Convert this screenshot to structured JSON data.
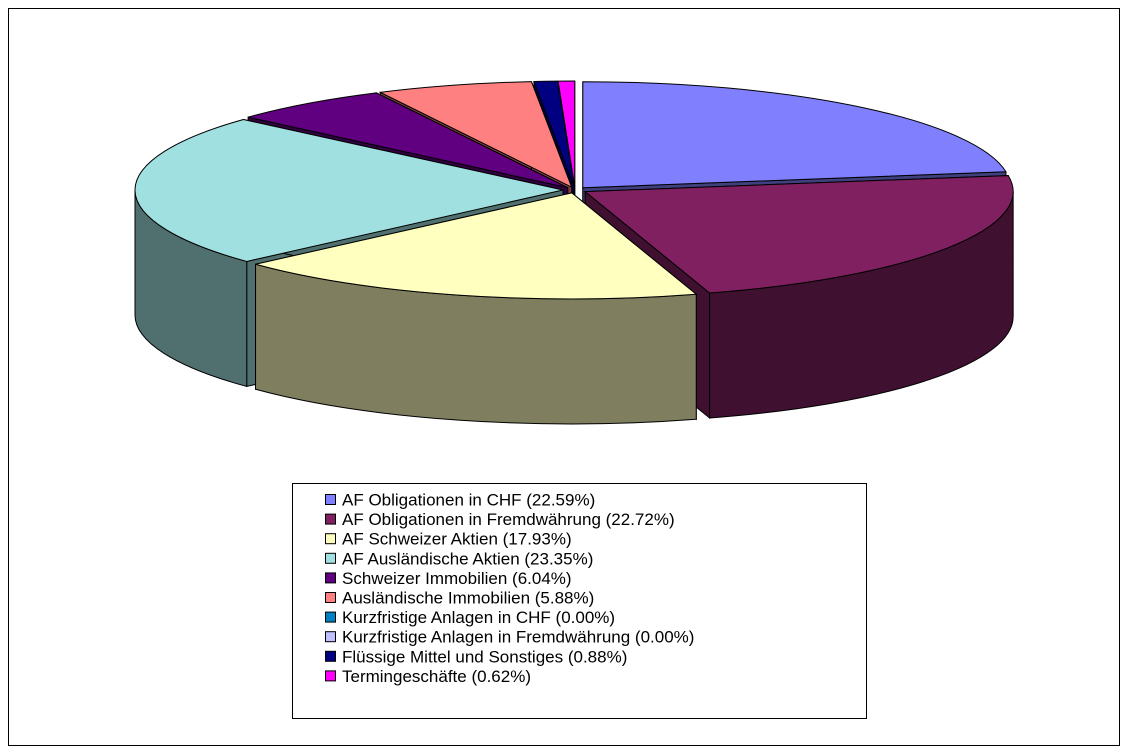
{
  "chart_data": {
    "type": "pie3d",
    "categories": [
      "AF Obligationen in CHF (22.59%)",
      "AF Obligationen in Fremdwährung (22.72%)",
      "AF Schweizer Aktien (17.93%)",
      "AF Ausländische Aktien (23.35%)",
      "Schweizer Immobilien (6.04%)",
      "Ausländische Immobilien (5.88%)",
      "Kurzfristige Anlagen in CHF (0.00%)",
      "Kurzfristige Anlagen in Fremdwährung (0.00%)",
      "Flüssige Mittel und Sonstiges (0.88%)",
      "Termingeschäfte (0.62%)"
    ],
    "values": [
      22.59,
      22.72,
      17.93,
      23.35,
      6.04,
      5.88,
      0,
      0,
      0.88,
      0.62
    ],
    "colors": [
      "#8080ff",
      "#802060",
      "#ffffc0",
      "#a0e0e0",
      "#600080",
      "#ff8080",
      "#0080c0",
      "#c0c0ff",
      "#000080",
      "#ff00ff"
    ],
    "legend": "bottom"
  }
}
